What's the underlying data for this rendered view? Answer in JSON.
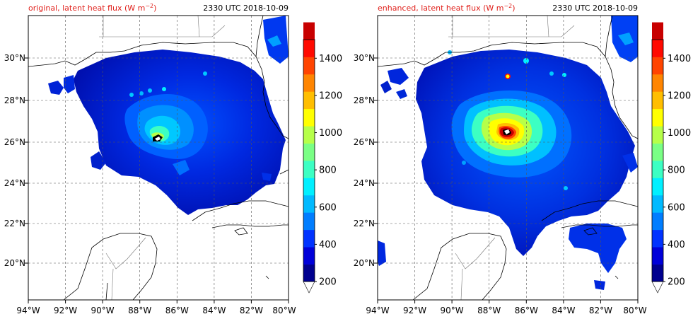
{
  "panels": [
    {
      "id": "original",
      "title_left": "original, latent heat flux (W m",
      "title_left_sup": "−2",
      "title_left_end": ")",
      "title_right": "2330 UTC 2018-10-09"
    },
    {
      "id": "enhanced",
      "title_left": "enhanced, latent heat flux (W m",
      "title_left_sup": "−2",
      "title_left_end": ")",
      "title_right": "2330 UTC 2018-10-09"
    }
  ],
  "lon_labels": [
    "94°W",
    "92°W",
    "90°W",
    "88°W",
    "86°W",
    "84°W",
    "82°W",
    "80°W"
  ],
  "lat_labels": [
    "30°N",
    "28°N",
    "26°N",
    "24°N",
    "22°N",
    "20°N"
  ],
  "colorbar": {
    "ticks": [
      "1400",
      "1200",
      "1000",
      "800",
      "600",
      "400",
      "200"
    ],
    "colors": [
      "#00008f",
      "#0000d9",
      "#0033ff",
      "#007dff",
      "#00baff",
      "#00f0ff",
      "#3cffc3",
      "#7aff85",
      "#b6ff49",
      "#ffff00",
      "#ffbe00",
      "#ff8500",
      "#ff4400",
      "#ff0a00",
      "#c80000",
      "#8b0000"
    ]
  }
}
